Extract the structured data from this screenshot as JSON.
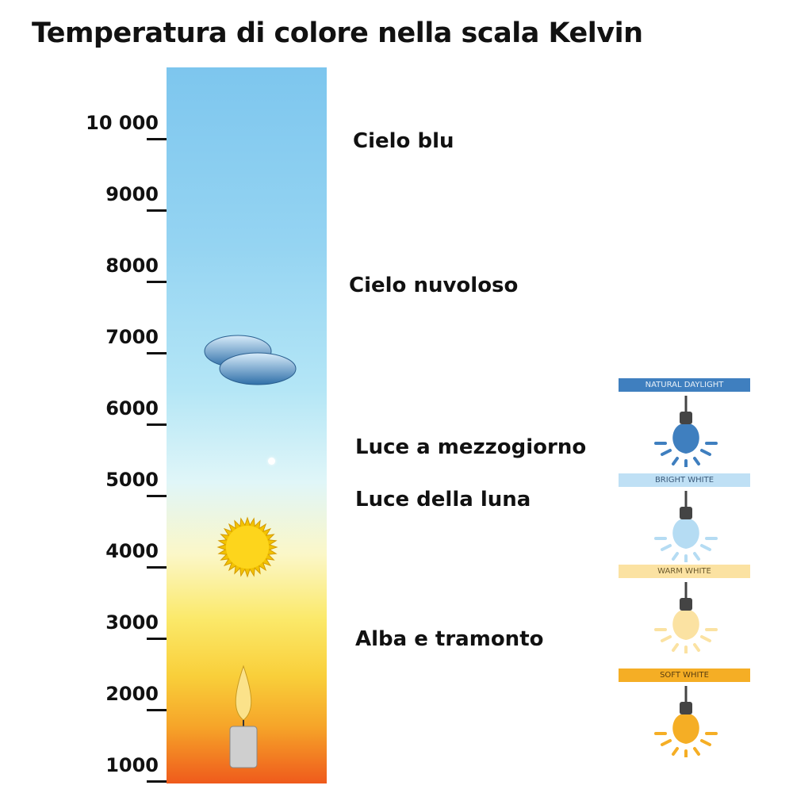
{
  "title": "Temperatura di colore nella scala Kelvin",
  "scale": {
    "unit": "K",
    "ticks": [
      "10 000",
      "9000",
      "8000",
      "7000",
      "6000",
      "5000",
      "4000",
      "3000",
      "2000",
      "1000"
    ]
  },
  "sources": [
    "Cielo blu",
    "Cielo nuvoloso",
    "Luce a mezzogiorno",
    "Luce della luna",
    "Alba e tramonto"
  ],
  "icons": [
    "cloud-icon",
    "sun-icon",
    "candle-icon"
  ],
  "bulbs": [
    {
      "label": "NATURAL DAYLIGHT",
      "color": "#3f7fbf",
      "banner_bg": "#3f7fbf",
      "text": "#e8f0f8"
    },
    {
      "label": "BRIGHT WHITE",
      "color": "#b5dcf3",
      "banner_bg": "#bfe0f5",
      "text": "#3b5a7a"
    },
    {
      "label": "WARM WHITE",
      "color": "#fbe2a2",
      "banner_bg": "#fbe2a2",
      "text": "#6b5a2e"
    },
    {
      "label": "SOFT WHITE",
      "color": "#f5ae25",
      "banner_bg": "#f5ae25",
      "text": "#5a3e10"
    }
  ]
}
